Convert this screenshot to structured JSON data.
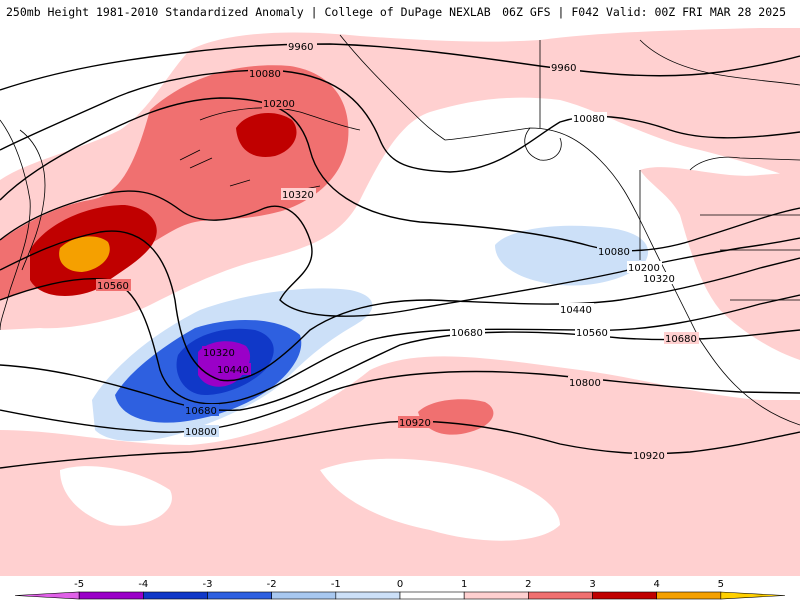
{
  "header": {
    "title": "250mb Height 1981-2010 Standardized Anomaly | College of DuPage NEXLAB",
    "run_info": "06Z GFS | F042 Valid: 00Z FRI MAR 28 2025"
  },
  "contours": {
    "labels": [
      "9960",
      "9960",
      "10080",
      "10080",
      "10080",
      "10200",
      "10200",
      "10320",
      "10320",
      "10320",
      "10440",
      "10440",
      "10560",
      "10560",
      "10680",
      "10680",
      "10680",
      "10800",
      "10800",
      "10920",
      "10920"
    ]
  },
  "colorbar": {
    "ticks": [
      "-5",
      "-4",
      "-3",
      "-2",
      "-1",
      "0",
      "1",
      "2",
      "3",
      "4",
      "5"
    ],
    "colors": [
      "#e060e8",
      "#9a00c8",
      "#1038c8",
      "#2e60e0",
      "#a8c8f0",
      "#cce0f8",
      "#ffffff",
      "#ffd0d0",
      "#f07070",
      "#c00000",
      "#f5a000",
      "#ffd000"
    ]
  },
  "colors": {
    "land": "#ffffff",
    "coast": "#000000",
    "contour": "#000000"
  }
}
